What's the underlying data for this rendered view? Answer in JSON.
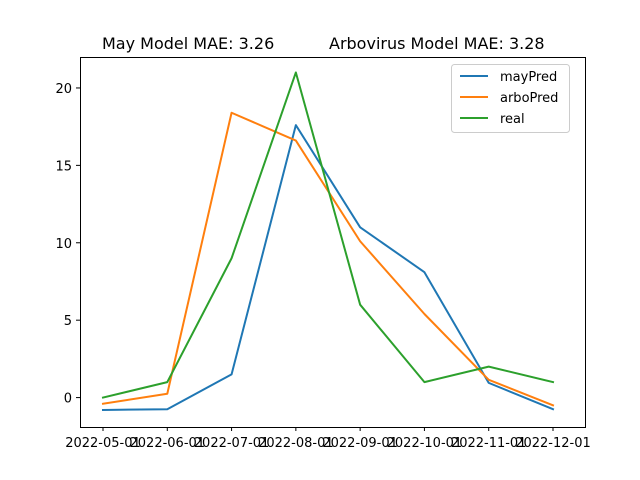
{
  "chart_data": {
    "type": "line",
    "title_left": "May Model MAE: 3.26",
    "title_right": "Arbovirus Model MAE: 3.28",
    "xlabel": "",
    "ylabel": "",
    "x": [
      "2022-05-01",
      "2022-06-01",
      "2022-07-01",
      "2022-08-01",
      "2022-09-01",
      "2022-10-01",
      "2022-11-01",
      "2022-12-01"
    ],
    "ylim": [
      -1.9,
      22.0
    ],
    "yticks": [
      0,
      5,
      10,
      15,
      20
    ],
    "grid": false,
    "legend_position": "top-right",
    "series": [
      {
        "name": "mayPred",
        "color": "#1f77b4",
        "values": [
          -0.8,
          -0.75,
          1.5,
          17.6,
          11.0,
          8.1,
          0.95,
          -0.75
        ]
      },
      {
        "name": "arboPred",
        "color": "#ff7f0e",
        "values": [
          -0.4,
          0.25,
          18.4,
          16.6,
          10.1,
          5.4,
          1.15,
          -0.5
        ]
      },
      {
        "name": "real",
        "color": "#2ca02c",
        "values": [
          0,
          1,
          9,
          21,
          6,
          1,
          2,
          1
        ]
      }
    ]
  }
}
